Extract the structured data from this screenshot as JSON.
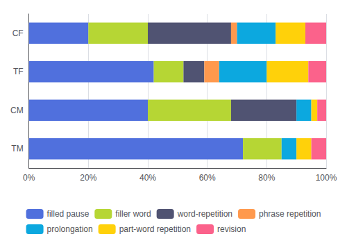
{
  "chart_data": {
    "type": "bar",
    "orientation": "horizontal",
    "stacked": true,
    "categories": [
      "TM",
      "CM",
      "TF",
      "CF"
    ],
    "series": [
      {
        "name": "filled pause",
        "values": [
          0.72,
          0.4,
          0.42,
          0.2
        ]
      },
      {
        "name": "filler word",
        "values": [
          0.13,
          0.28,
          0.1,
          0.2
        ]
      },
      {
        "name": "word-repetition",
        "values": [
          0.0,
          0.22,
          0.07,
          0.28
        ]
      },
      {
        "name": "phrase repetition",
        "values": [
          0.0,
          0.0,
          0.05,
          0.02
        ]
      },
      {
        "name": "prolongation",
        "values": [
          0.05,
          0.05,
          0.16,
          0.13
        ]
      },
      {
        "name": "part-word repetition",
        "values": [
          0.05,
          0.02,
          0.14,
          0.1
        ]
      },
      {
        "name": "revision",
        "values": [
          0.05,
          0.03,
          0.06,
          0.07
        ]
      }
    ],
    "xlim": [
      0,
      1.0
    ],
    "xticks": [
      {
        "value": 0,
        "label": "0%"
      },
      {
        "value": 0.2,
        "label": "20%"
      },
      {
        "value": 0.4,
        "label": "40%"
      },
      {
        "value": 0.6,
        "label": "60%"
      },
      {
        "value": 0.8,
        "label": "80%"
      },
      {
        "value": 1.0,
        "label": "100%"
      }
    ],
    "grid": true,
    "legend": "bottom"
  }
}
